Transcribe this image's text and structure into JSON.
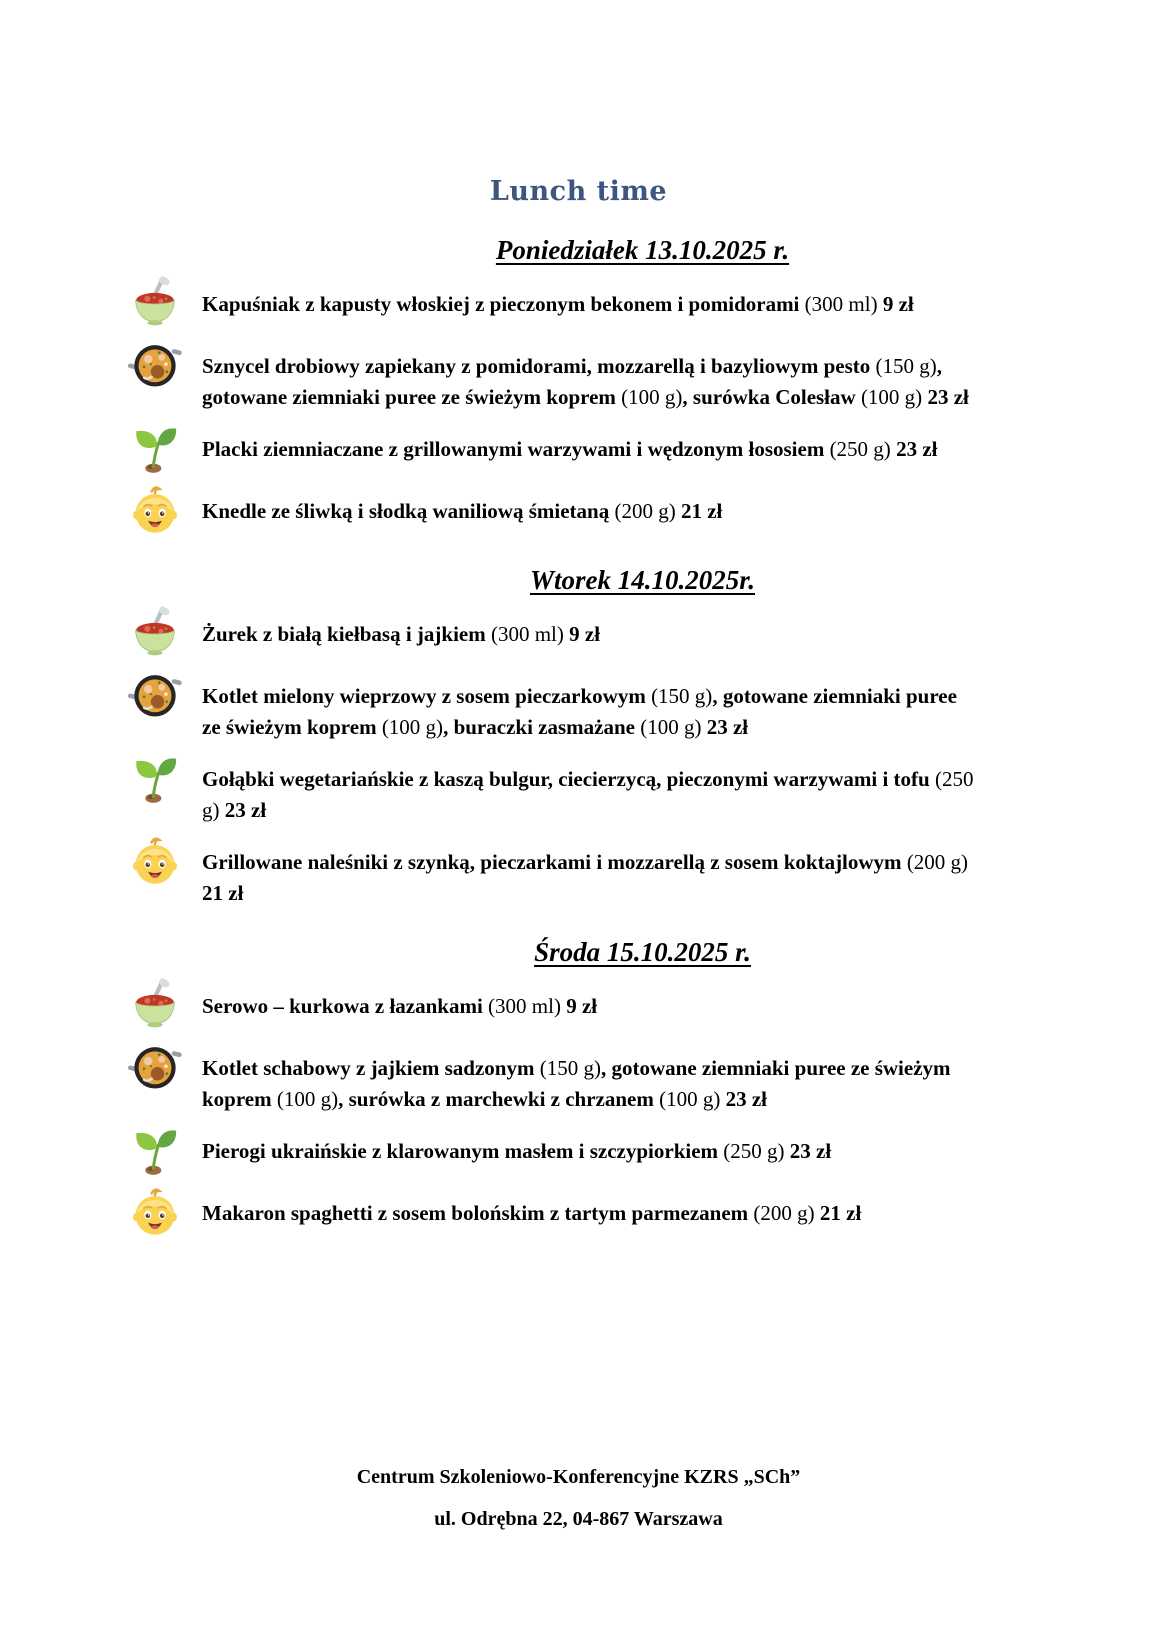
{
  "page": {
    "title": "Lunch time",
    "title_color": "#3d5680"
  },
  "icon_legend": {
    "soup-bowl-icon": "🍲",
    "pan-of-food-icon": "🥘",
    "seedling-icon": "🌱",
    "baby-icon": "👶"
  },
  "days": [
    {
      "heading": "Poniedziałek 13.10.2025 r.",
      "items": [
        {
          "icon": "soup-bowl-icon",
          "segments": [
            {
              "text": "Kapuśniak z kapusty włoskiej z pieczonym  bekonem i pomidorami ",
              "bold": true
            },
            {
              "text": "(300 ml) ",
              "bold": false
            },
            {
              "text": "9 zł",
              "bold": true
            }
          ]
        },
        {
          "icon": "pan-of-food-icon",
          "segments": [
            {
              "text": "Sznycel drobiowy zapiekany z pomidorami, mozzarellą i bazyliowym pesto ",
              "bold": true
            },
            {
              "text": "(150 g)",
              "bold": false
            },
            {
              "text": ", gotowane ziemniaki puree ze świeżym koprem ",
              "bold": true
            },
            {
              "text": "(100 g)",
              "bold": false
            },
            {
              "text": ", surówka Colesław ",
              "bold": true
            },
            {
              "text": "(100 g) ",
              "bold": false
            },
            {
              "text": "23 zł",
              "bold": true
            }
          ]
        },
        {
          "icon": "seedling-icon",
          "segments": [
            {
              "text": "Placki ziemniaczane z grillowanymi warzywami i wędzonym łososiem ",
              "bold": true
            },
            {
              "text": "(250 g) ",
              "bold": false
            },
            {
              "text": "23 zł",
              "bold": true
            }
          ]
        },
        {
          "icon": "baby-icon",
          "segments": [
            {
              "text": "Knedle ze śliwką i słodką waniliową śmietaną ",
              "bold": true
            },
            {
              "text": "(200 g) ",
              "bold": false
            },
            {
              "text": "21 zł",
              "bold": true
            }
          ]
        }
      ]
    },
    {
      "heading": "Wtorek 14.10.2025r.",
      "items": [
        {
          "icon": "soup-bowl-icon",
          "segments": [
            {
              "text": "Żurek z białą kiełbasą i jajkiem ",
              "bold": true
            },
            {
              "text": "(300 ml) ",
              "bold": false
            },
            {
              "text": "9 zł",
              "bold": true
            }
          ]
        },
        {
          "icon": "pan-of-food-icon",
          "segments": [
            {
              "text": "Kotlet mielony wieprzowy z sosem pieczarkowym ",
              "bold": true
            },
            {
              "text": "(150 g)",
              "bold": false
            },
            {
              "text": ", gotowane ziemniaki puree ze świeżym koprem ",
              "bold": true
            },
            {
              "text": "(100 g)",
              "bold": false
            },
            {
              "text": ", buraczki zasmażane  ",
              "bold": true
            },
            {
              "text": "(100 g) ",
              "bold": false
            },
            {
              "text": "23 zł",
              "bold": true
            }
          ]
        },
        {
          "icon": "seedling-icon",
          "segments": [
            {
              "text": "Gołąbki wegetariańskie z kaszą bulgur, ciecierzycą, pieczonymi warzywami i tofu ",
              "bold": true
            },
            {
              "text": "(250 g) ",
              "bold": false
            },
            {
              "text": "23 zł",
              "bold": true
            }
          ]
        },
        {
          "icon": "baby-icon",
          "segments": [
            {
              "text": "Grillowane naleśniki z szynką, pieczarkami i mozzarellą z sosem koktajlowym ",
              "bold": true
            },
            {
              "text": "(200 g) ",
              "bold": false
            },
            {
              "text": "21 zł",
              "bold": true
            }
          ]
        }
      ]
    },
    {
      "heading": "Środa 15.10.2025 r.",
      "items": [
        {
          "icon": "soup-bowl-icon",
          "segments": [
            {
              "text": "Serowo – kurkowa z łazankami ",
              "bold": true
            },
            {
              "text": "(300 ml) ",
              "bold": false
            },
            {
              "text": "9 zł",
              "bold": true
            }
          ]
        },
        {
          "icon": "pan-of-food-icon",
          "segments": [
            {
              "text": "Kotlet schabowy z jajkiem sadzonym ",
              "bold": true
            },
            {
              "text": "(150 g)",
              "bold": false
            },
            {
              "text": ", gotowane ziemniaki puree ze świeżym koprem ",
              "bold": true
            },
            {
              "text": "(100 g)",
              "bold": false
            },
            {
              "text": ", surówka z marchewki z chrzanem ",
              "bold": true
            },
            {
              "text": "(100 g) ",
              "bold": false
            },
            {
              "text": "23 zł",
              "bold": true
            }
          ]
        },
        {
          "icon": "seedling-icon",
          "segments": [
            {
              "text": "Pierogi ukraińskie z klarowanym masłem i szczypiorkiem ",
              "bold": true
            },
            {
              "text": "(250 g) ",
              "bold": false
            },
            {
              "text": "23 zł",
              "bold": true
            }
          ]
        },
        {
          "icon": "baby-icon",
          "segments": [
            {
              "text": "Makaron spaghetti z sosem bolońskim z tartym parmezanem ",
              "bold": true
            },
            {
              "text": "(200 g) ",
              "bold": false
            },
            {
              "text": "21 zł",
              "bold": true
            }
          ]
        }
      ]
    }
  ],
  "footer": {
    "company": "Centrum Szkoleniowo-Konferencyjne KZRS „SCh”",
    "address": "ul. Odrębna 22, 04-867 Warszawa"
  }
}
